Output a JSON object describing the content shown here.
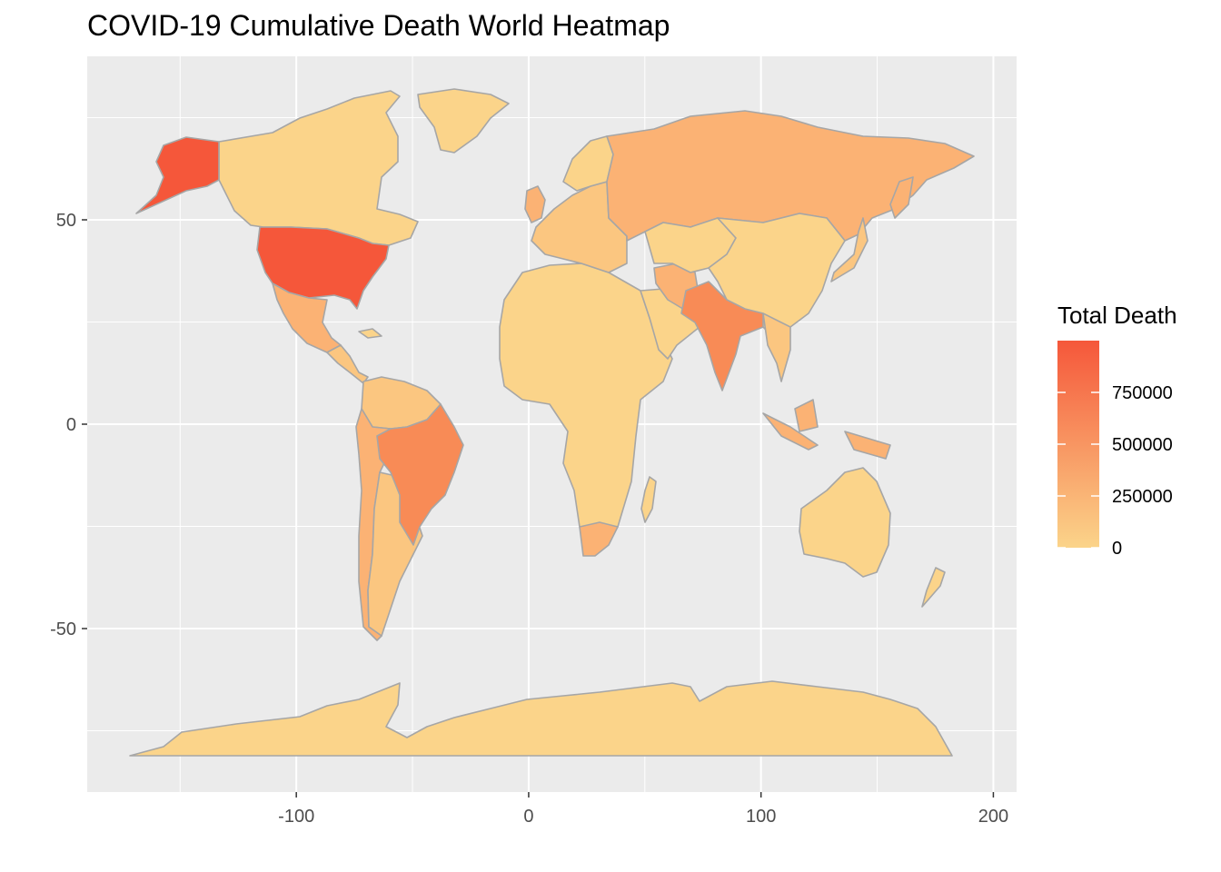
{
  "title": "COVID-19 Cumulative Death World Heatmap",
  "chart_data": {
    "type": "heatmap",
    "subtype": "choropleth-world-map",
    "title": "COVID-19 Cumulative Death World Heatmap",
    "xlabel": "",
    "ylabel": "",
    "xlim": [
      -190,
      210
    ],
    "ylim": [
      -90,
      90
    ],
    "x_ticks": [
      -100,
      0,
      100,
      200
    ],
    "y_ticks": [
      50,
      0,
      -50
    ],
    "x_tick_labels": [
      "-100",
      "0",
      "100",
      "200"
    ],
    "y_tick_labels": [
      "50",
      "0",
      "-50"
    ],
    "grid": true,
    "background_color": "#ebebeb",
    "border_color": "#a6a6a6",
    "legend": {
      "title": "Total Death",
      "position": "right",
      "min": 0,
      "max": 1000000,
      "ticks": [
        0,
        250000,
        500000,
        750000
      ],
      "tick_labels": [
        "0",
        "250000",
        "500000",
        "750000"
      ],
      "color_low": "#fbd48a",
      "color_high": "#f5573a"
    }
  }
}
